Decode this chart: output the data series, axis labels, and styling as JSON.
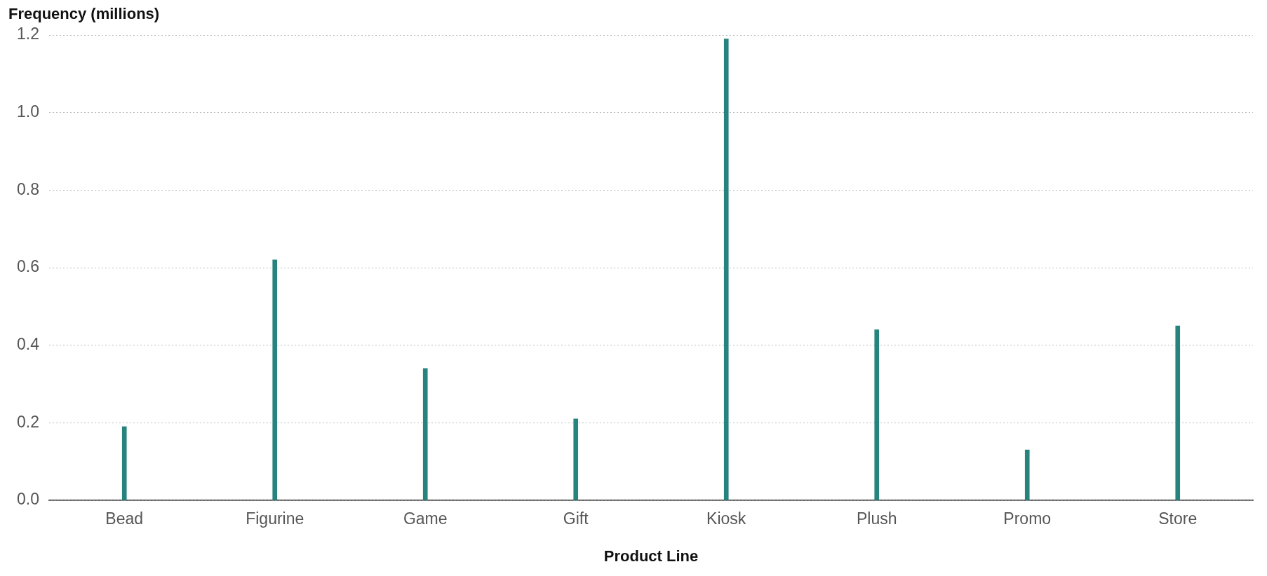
{
  "chart_data": {
    "type": "bar",
    "xlabel": "Product Line",
    "ylabel": "Frequency (millions)",
    "categories": [
      "Bead",
      "Figurine",
      "Game",
      "Gift",
      "Kiosk",
      "Plush",
      "Promo",
      "Store"
    ],
    "values": [
      0.19,
      0.62,
      0.34,
      0.21,
      1.19,
      0.44,
      0.13,
      0.45
    ],
    "color": "#27837e",
    "ylim": [
      0,
      1.2
    ],
    "yticks": [
      {
        "value": 0,
        "label": "0.0"
      },
      0.2,
      0.4,
      0.6,
      0.8,
      {
        "value": 1,
        "label": "1.0"
      },
      1.2
    ],
    "grid": "y",
    "legend": false
  }
}
